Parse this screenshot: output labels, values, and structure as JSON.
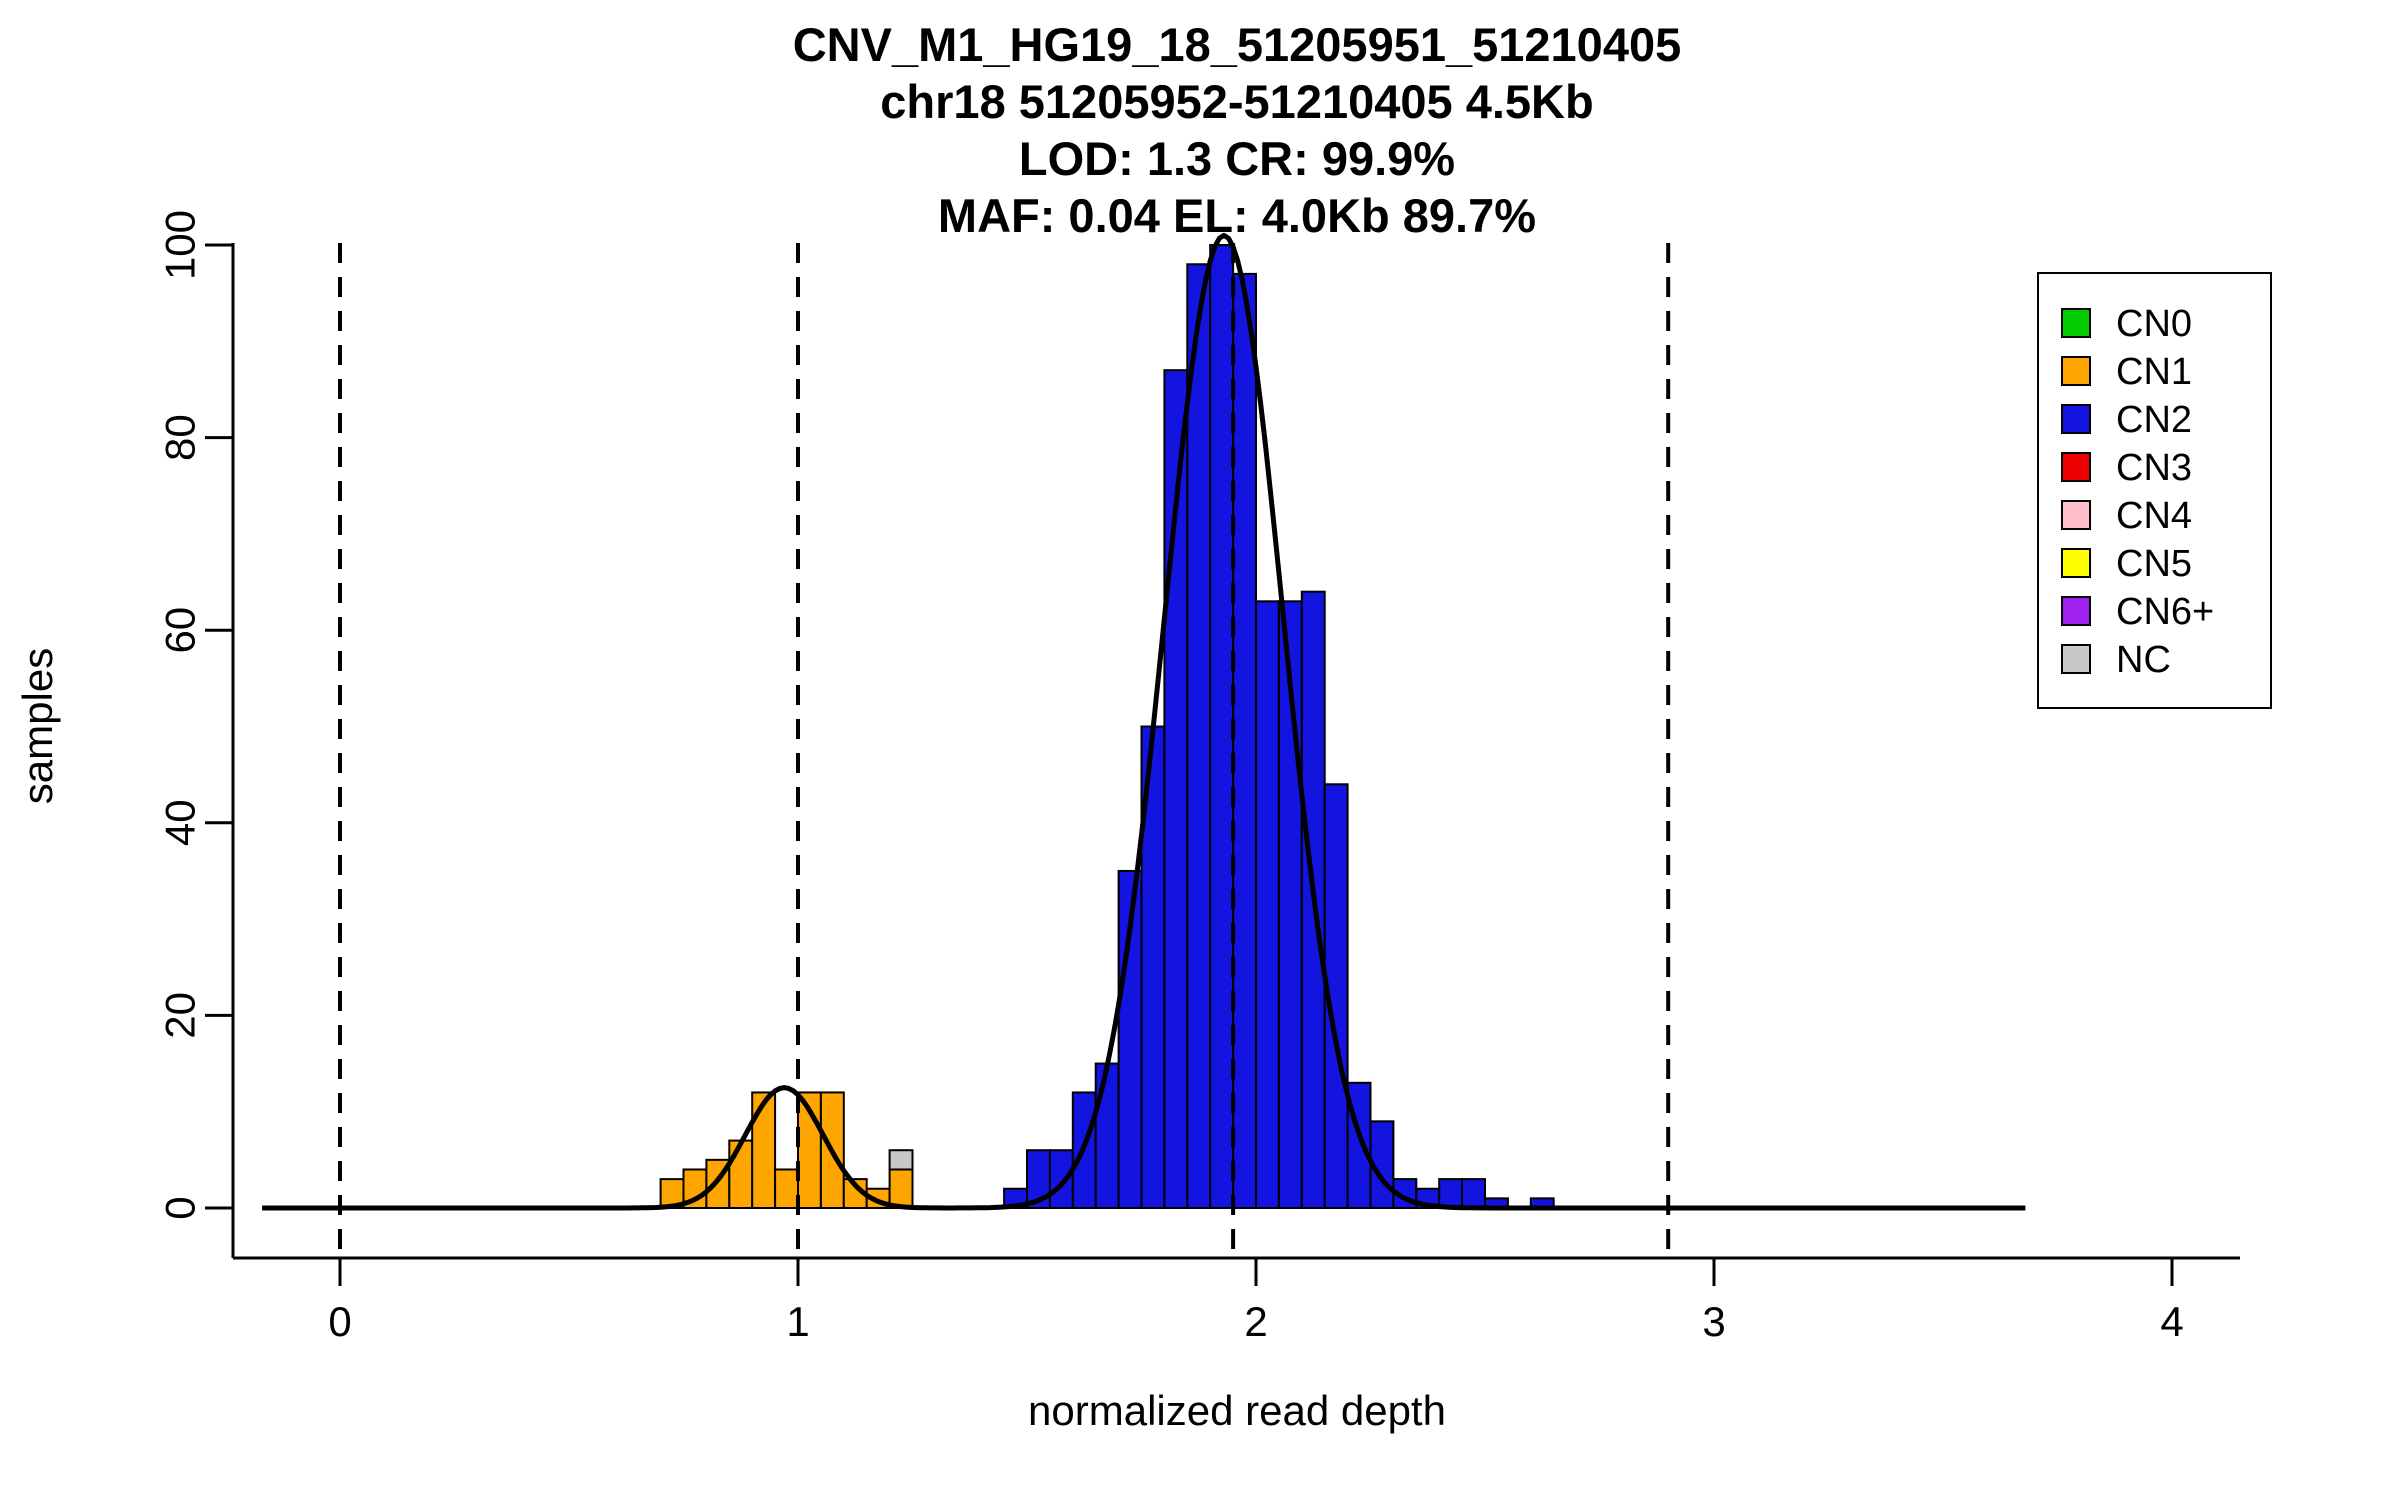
{
  "chart_data": {
    "type": "bar",
    "title_lines": [
      "CNV_M1_HG19_18_51205951_51210405",
      "chr18 51205952-51210405 4.5Kb",
      "LOD: 1.3 CR: 99.9%",
      "MAF: 0.04 EL: 4.0Kb 89.7%"
    ],
    "xlabel": "normalized read depth",
    "ylabel": "samples",
    "xlim": [
      -0.2,
      4.2
    ],
    "ylim": [
      0,
      100
    ],
    "x_ticks": [
      0,
      1,
      2,
      3,
      4
    ],
    "y_ticks": [
      0,
      20,
      40,
      60,
      80,
      100
    ],
    "grid": false,
    "bin_width": 0.05,
    "bars": [
      [
        0.7,
        3,
        "CN1"
      ],
      [
        0.75,
        4,
        "CN1"
      ],
      [
        0.8,
        5,
        "CN1"
      ],
      [
        0.85,
        7,
        "CN1"
      ],
      [
        0.9,
        12,
        "CN1"
      ],
      [
        0.95,
        4,
        "CN1"
      ],
      [
        1.0,
        12,
        "CN1"
      ],
      [
        1.05,
        12,
        "CN1"
      ],
      [
        1.1,
        3,
        "CN1"
      ],
      [
        1.15,
        2,
        "CN1"
      ],
      [
        1.2,
        4,
        "CN1"
      ],
      [
        1.2,
        2,
        "NC",
        4
      ],
      [
        1.45,
        2,
        "CN2"
      ],
      [
        1.5,
        6,
        "CN2"
      ],
      [
        1.55,
        6,
        "CN2"
      ],
      [
        1.6,
        12,
        "CN2"
      ],
      [
        1.65,
        15,
        "CN2"
      ],
      [
        1.7,
        35,
        "CN2"
      ],
      [
        1.75,
        50,
        "CN2"
      ],
      [
        1.8,
        87,
        "CN2"
      ],
      [
        1.85,
        98,
        "CN2"
      ],
      [
        1.9,
        100,
        "CN2"
      ],
      [
        1.95,
        97,
        "CN2"
      ],
      [
        2.0,
        63,
        "CN2"
      ],
      [
        2.05,
        63,
        "CN2"
      ],
      [
        2.1,
        64,
        "CN2"
      ],
      [
        2.15,
        44,
        "CN2"
      ],
      [
        2.2,
        13,
        "CN2"
      ],
      [
        2.25,
        9,
        "CN2"
      ],
      [
        2.3,
        3,
        "CN2"
      ],
      [
        2.35,
        2,
        "CN2"
      ],
      [
        2.4,
        3,
        "CN2"
      ],
      [
        2.45,
        3,
        "CN2"
      ],
      [
        2.5,
        1,
        "CN2"
      ],
      [
        2.6,
        1,
        "CN2"
      ]
    ],
    "fit_curve": {
      "range": [
        -0.17,
        3.68
      ],
      "components": [
        {
          "mean": 0.97,
          "sd": 0.085,
          "height": 12.5
        },
        {
          "mean": 1.93,
          "sd": 0.13,
          "height": 101
        }
      ]
    },
    "dashed_lines_x": [
      0,
      1,
      1.95,
      2.9
    ],
    "legend": {
      "position": "top-right",
      "items": [
        {
          "label": "CN0",
          "color": "#00CC00"
        },
        {
          "label": "CN1",
          "color": "#FFA500"
        },
        {
          "label": "CN2",
          "color": "#1414E0"
        },
        {
          "label": "CN3",
          "color": "#EE0000"
        },
        {
          "label": "CN4",
          "color": "#FFC0CB"
        },
        {
          "label": "CN5",
          "color": "#FFFF00"
        },
        {
          "label": "CN6+",
          "color": "#A020F0"
        },
        {
          "label": "NC",
          "color": "#C8C8C8"
        }
      ]
    }
  }
}
